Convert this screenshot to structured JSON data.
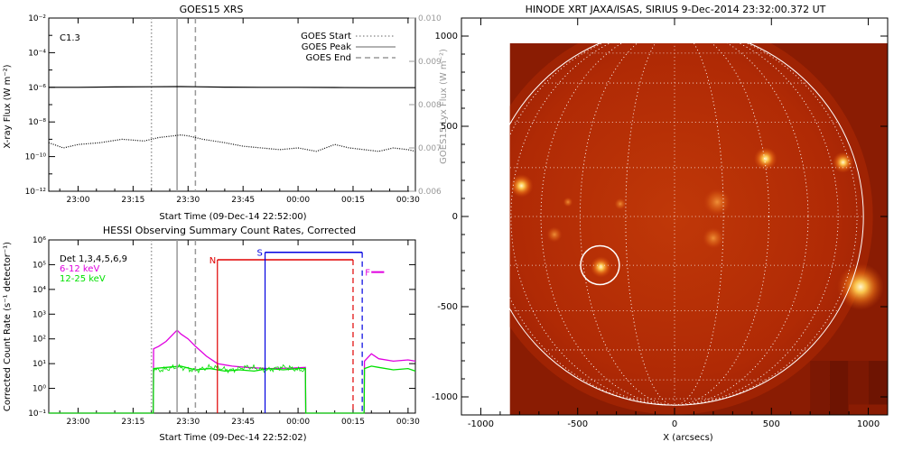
{
  "goes_panel": {
    "title": "GOES15 XRS",
    "class_label": "C1.3",
    "xlabel": "Start Time (09-Dec-14 22:52:00)",
    "ylabel_left": "X-ray Flux (W m⁻²)",
    "ylabel_right": "GOES15 Lyx Flux (W m⁻²)",
    "legend": [
      {
        "label": "GOES Start",
        "style": "dotted"
      },
      {
        "label": "GOES Peak",
        "style": "solid"
      },
      {
        "label": "GOES End",
        "style": "dashed"
      }
    ]
  },
  "hessi_panel": {
    "title": "HESSI Observing Summary Count Rates, Corrected",
    "xlabel": "Start Time (09-Dec-14 22:52:02)",
    "ylabel": "Corrected Count Rate (s⁻¹ detector⁻¹)",
    "legend": [
      {
        "label": "Det 1,3,4,5,6,9",
        "color": "#000000"
      },
      {
        "label": "6-12 keV",
        "color": "#e000e0"
      },
      {
        "label": "12-25 keV",
        "color": "#00e000"
      }
    ],
    "bar_labels": {
      "N": "N",
      "S": "S",
      "F": "F"
    }
  },
  "image_panel": {
    "title": "HINODE XRT JAXA/ISAS, SIRIUS   9-Dec-2014 23:32:00.372 UT",
    "xlabel": "X (arcsecs)"
  },
  "chart_data": [
    {
      "type": "line",
      "title": "GOES15 XRS",
      "xlabel": "Start Time (09-Dec-14 22:52:00)",
      "ylabel": "X-ray Flux (W m⁻²)",
      "ylabel_right": "GOES15 Lyx Flux (W m⁻²)",
      "y_scale": "log",
      "ylim": [
        1e-12,
        0.01
      ],
      "y_ticks": [
        "10⁻¹²",
        "10⁻¹⁰",
        "10⁻⁸",
        "10⁻⁶",
        "10⁻⁴",
        "10⁻²"
      ],
      "y_tick_values": [
        -12,
        -10,
        -8,
        -6,
        -4,
        -2
      ],
      "y2lim": [
        0.006,
        0.01
      ],
      "y2_ticks": [
        "0.006",
        "0.007",
        "0.008",
        "0.009",
        "0.010"
      ],
      "y2_tick_values": [
        0.006,
        0.007,
        0.008,
        0.009,
        0.01
      ],
      "x_ticks": [
        "23:00",
        "23:15",
        "23:30",
        "23:45",
        "00:00",
        "00:15",
        "00:30"
      ],
      "x_tick_minutes": [
        60,
        75,
        90,
        105,
        120,
        135,
        150
      ],
      "xlim_minutes": [
        52,
        152
      ],
      "series": [
        {
          "name": "",
          "style": "solid",
          "x": [
            52,
            60,
            70,
            80,
            88,
            92,
            100,
            110,
            120,
            130,
            140,
            152
          ],
          "log_values": [
            -6.0,
            -6.0,
            -5.98,
            -5.97,
            -5.96,
            -5.97,
            -5.99,
            -6.0,
            -6.0,
            -6.01,
            -6.02,
            -6.02
          ]
        },
        {
          "name": "",
          "style": "dotted",
          "x": [
            52,
            56,
            60,
            66,
            72,
            78,
            82,
            86,
            88,
            90,
            94,
            100,
            105,
            110,
            115,
            120,
            125,
            130,
            134,
            138,
            142,
            146,
            150,
            152
          ],
          "log_values": [
            -9.2,
            -9.5,
            -9.3,
            -9.2,
            -9.0,
            -9.1,
            -8.9,
            -8.8,
            -8.75,
            -8.8,
            -9.0,
            -9.2,
            -9.4,
            -9.5,
            -9.6,
            -9.5,
            -9.7,
            -9.3,
            -9.5,
            -9.6,
            -9.7,
            -9.5,
            -9.6,
            -9.7
          ]
        }
      ],
      "markers_minutes": {
        "start": 80,
        "peak": 87,
        "end": 92
      },
      "annotation": "C1.3",
      "legend_position": "top-right"
    },
    {
      "type": "line",
      "title": "HESSI Observing Summary Count Rates, Corrected",
      "xlabel": "Start Time (09-Dec-14 22:52:02)",
      "ylabel": "Corrected Count Rate (s⁻¹ detector⁻¹)",
      "y_scale": "log",
      "ylim": [
        0.1,
        1000000.0
      ],
      "y_ticks": [
        "10⁻¹",
        "10⁰",
        "10¹",
        "10²",
        "10³",
        "10⁴",
        "10⁵",
        "10⁶"
      ],
      "y_tick_values": [
        -1,
        0,
        1,
        2,
        3,
        4,
        5,
        6
      ],
      "x_ticks": [
        "23:00",
        "23:15",
        "23:30",
        "23:45",
        "00:00",
        "00:15",
        "00:30"
      ],
      "x_tick_minutes": [
        60,
        75,
        90,
        105,
        120,
        135,
        150
      ],
      "xlim_minutes": [
        52,
        152
      ],
      "series": [
        {
          "name": "6-12 keV",
          "color": "#e000e0",
          "x": [
            52,
            80.5,
            80.6,
            82,
            84,
            86,
            87,
            88,
            90,
            92,
            95,
            98,
            102,
            106,
            112,
            118,
            122,
            122.1,
            138,
            138.1,
            140,
            142,
            146,
            150,
            152
          ],
          "log_values": [
            -1,
            -1,
            1.6,
            1.7,
            1.9,
            2.2,
            2.35,
            2.2,
            2.0,
            1.7,
            1.3,
            1.0,
            0.9,
            0.85,
            0.8,
            0.82,
            0.85,
            -1,
            -1,
            1.1,
            1.4,
            1.2,
            1.1,
            1.15,
            1.1
          ]
        },
        {
          "name": "12-25 keV",
          "color": "#00e000",
          "x": [
            52,
            80.5,
            80.6,
            84,
            88,
            92,
            96,
            100,
            104,
            108,
            112,
            116,
            120,
            122,
            122.1,
            138,
            138.1,
            140,
            142,
            146,
            150,
            152
          ],
          "log_values": [
            -1,
            -1,
            0.8,
            0.85,
            0.9,
            0.75,
            0.8,
            0.7,
            0.75,
            0.7,
            0.8,
            0.75,
            0.8,
            0.8,
            -1,
            -1,
            0.8,
            0.9,
            0.85,
            0.75,
            0.8,
            0.7
          ]
        }
      ],
      "markers_minutes": {
        "start": 80,
        "peak": 87,
        "end": 92
      },
      "intervals": [
        {
          "label": "N",
          "color": "#e00000",
          "start_minutes": 98,
          "end_minutes": 135,
          "log_level": 5.2
        },
        {
          "label": "S",
          "color": "#0000e0",
          "start_minutes": 111,
          "end_minutes": 137.5,
          "log_level": 5.5
        },
        {
          "label": "F",
          "color": "#e000e0",
          "start_minutes": 139,
          "end_minutes": 142,
          "log_level": 4.7
        }
      ],
      "legend_position": "top-left"
    },
    {
      "type": "heatmap",
      "title": "HINODE XRT JAXA/ISAS, SIRIUS   9-Dec-2014 23:32:00.372 UT",
      "xlabel": "X (arcsecs)",
      "xlim": [
        -1100,
        1100
      ],
      "ylim": [
        -1100,
        1100
      ],
      "x_ticks": [
        "-1000",
        "-500",
        "0",
        "500",
        "1000"
      ],
      "x_tick_values": [
        -1000,
        -500,
        0,
        500,
        1000
      ],
      "y_ticks": [
        "-1000",
        "-500",
        "0",
        "500",
        "1000"
      ],
      "y_tick_values": [
        -1000,
        -500,
        0,
        500,
        1000
      ],
      "image_extent": {
        "x": [
          -850,
          1100
        ],
        "y": [
          -1100,
          960
        ]
      },
      "solar_radius": 975,
      "highlight_region": {
        "x": -385,
        "y": -270,
        "r": 100
      },
      "bright_regions": [
        {
          "x": -380,
          "y": -280,
          "r": 55
        },
        {
          "x": -790,
          "y": 170,
          "r": 60
        },
        {
          "x": 870,
          "y": 300,
          "r": 55
        },
        {
          "x": 960,
          "y": -390,
          "r": 120
        },
        {
          "x": 470,
          "y": 320,
          "r": 60
        },
        {
          "x": 220,
          "y": 80,
          "r": 70
        },
        {
          "x": -550,
          "y": 80,
          "r": 25
        },
        {
          "x": -280,
          "y": 70,
          "r": 30
        },
        {
          "x": 200,
          "y": -120,
          "r": 55
        },
        {
          "x": -620,
          "y": -100,
          "r": 40
        }
      ]
    }
  ]
}
